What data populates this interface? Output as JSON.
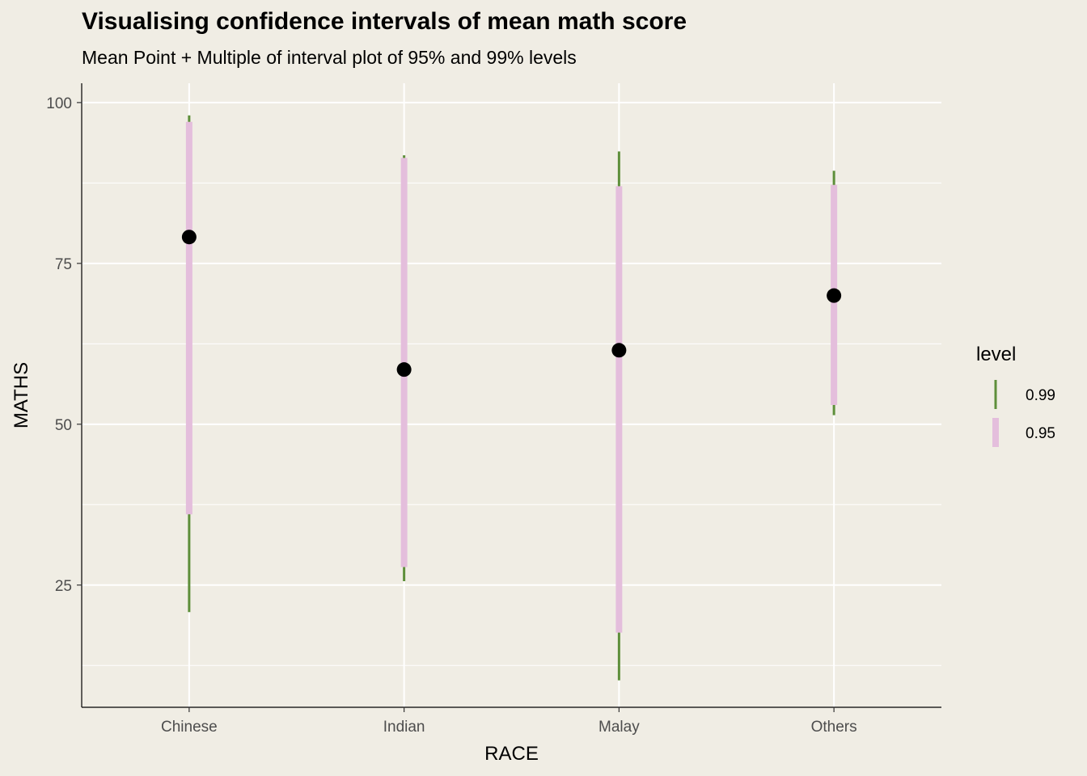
{
  "title": "Visualising confidence intervals of mean math score",
  "subtitle": "Mean Point + Multiple of interval plot of 95% and 99% levels",
  "chart_data": {
    "type": "interval",
    "title": "Visualising confidence intervals of mean math score",
    "subtitle": "Mean Point + Multiple of interval plot of 95% and 99% levels",
    "xlabel": "RACE",
    "ylabel": "MATHS",
    "categories": [
      "Chinese",
      "Indian",
      "Malay",
      "Others"
    ],
    "ylim": [
      6,
      103
    ],
    "yticks": [
      25,
      50,
      75,
      100
    ],
    "grid": true,
    "legend_title": "level",
    "legend_position": "right",
    "series": [
      {
        "name": "0.99",
        "color": "#5E8F3A",
        "intervals": [
          [
            20.8,
            98.0
          ],
          [
            25.6,
            91.8
          ],
          [
            10.2,
            92.4
          ],
          [
            51.4,
            89.4
          ]
        ]
      },
      {
        "name": "0.95",
        "color": "#E4BEDC",
        "intervals": [
          [
            36.0,
            97.0
          ],
          [
            27.8,
            91.4
          ],
          [
            17.6,
            87.0
          ],
          [
            53.0,
            87.2
          ]
        ]
      }
    ],
    "means": [
      79.1,
      58.5,
      61.5,
      70.0
    ],
    "mean_color": "#000000"
  }
}
